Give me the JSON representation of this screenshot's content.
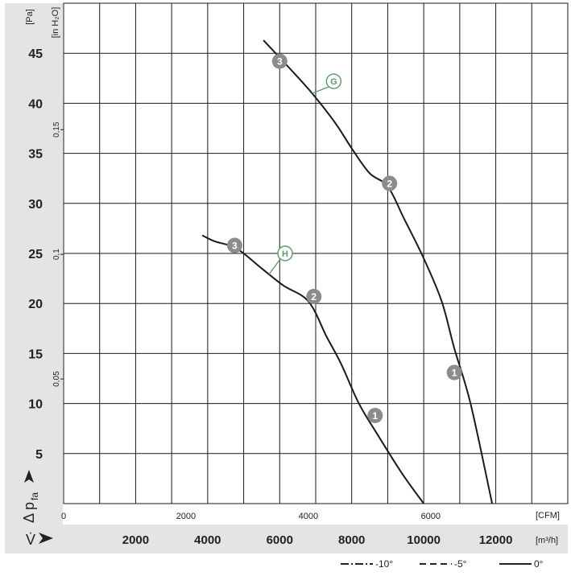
{
  "chart_data": {
    "type": "line",
    "y_unit": "[Pa]",
    "y_unit_alt": "[in H₂O]",
    "x_unit": "[m³/h]",
    "x_unit_alt": "[CFM]",
    "y_symbol": "Δ p",
    "y_symbol_sub": "fa",
    "x_symbol": "V̇",
    "y_ticks": [
      "5",
      "10",
      "15",
      "20",
      "25",
      "30",
      "35",
      "40",
      "45"
    ],
    "y_alt_ticks": [
      "0,05",
      "0,1",
      "0,15"
    ],
    "x_ticks": [
      "2000",
      "4000",
      "6000",
      "8000",
      "10000",
      "12000"
    ],
    "x_alt_ticks": [
      "0",
      "2000",
      "4000",
      "6000"
    ],
    "xlim": [
      0,
      14000
    ],
    "ylim": [
      0,
      50
    ],
    "grid": true,
    "legend": {
      "placement": "bottom-right",
      "items": [
        {
          "label": "-10°",
          "style": "dash-dot"
        },
        {
          "label": "-5°",
          "style": "dashed"
        },
        {
          "label": "0°",
          "style": "solid"
        }
      ]
    },
    "series": [
      {
        "x": [
          5550,
          6250,
          6900,
          7550,
          8000,
          8500,
          9000,
          9450,
          10000,
          10500,
          10850,
          11300,
          11900
        ],
        "y": [
          46.3,
          43.6,
          41.0,
          38.0,
          35.5,
          33.0,
          31.7,
          28.5,
          24.5,
          20.2,
          15.5,
          10.0,
          0
        ],
        "points": [
          {
            "label": "3",
            "x": 6000,
            "y": 44.2
          },
          {
            "label": "2",
            "x": 9050,
            "y": 32.0
          },
          {
            "label": "1",
            "x": 10850,
            "y": 13.1
          }
        ]
      },
      {
        "x": [
          3850,
          4200,
          4800,
          5500,
          6100,
          6800,
          7300,
          7700,
          8200,
          8700,
          9400,
          10000
        ],
        "y": [
          26.8,
          26.2,
          25.5,
          23.5,
          21.8,
          20.2,
          16.7,
          14.0,
          10.0,
          7.0,
          3.0,
          0
        ],
        "points": [
          {
            "label": "3",
            "x": 4750,
            "y": 25.8
          },
          {
            "label": "2",
            "x": 6950,
            "y": 20.7
          },
          {
            "label": "1",
            "x": 8650,
            "y": 8.8
          }
        ]
      }
    ],
    "annotations": [
      {
        "label": "G",
        "x": 7500,
        "y": 42.2,
        "anchor_x": 6900,
        "anchor_y": 41.0
      },
      {
        "label": "H",
        "x": 6150,
        "y": 25.0,
        "anchor_x": 5700,
        "anchor_y": 22.9
      }
    ],
    "colors": {
      "curve": "#1a1a1a",
      "marker_fill": "#8c8c8c",
      "marker_text": "#ffffff",
      "annotation": "#5a9a6a",
      "axis_band": "#e4e4e4",
      "grid": "#1a1a1a"
    }
  }
}
